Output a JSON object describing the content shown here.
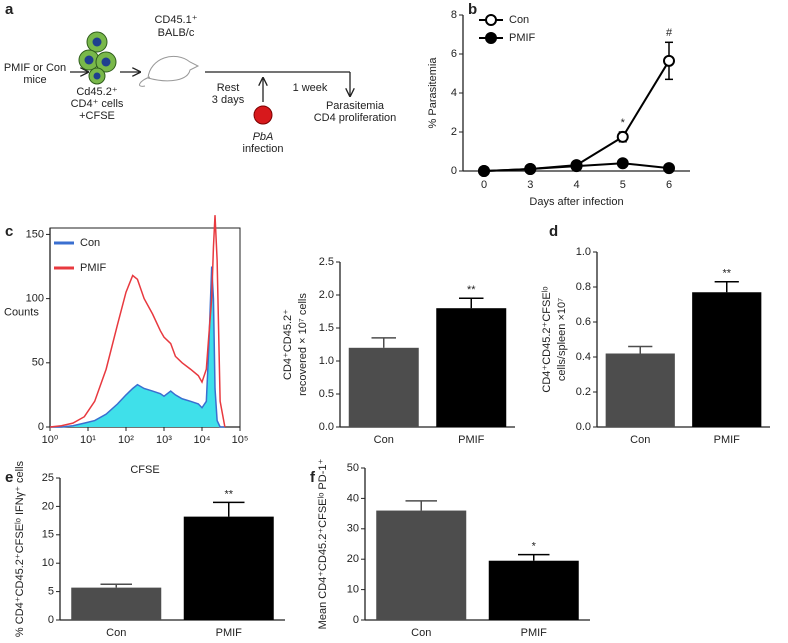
{
  "schematic": {
    "panel": "a",
    "source": [
      "PMIF or Con",
      "mice"
    ],
    "cells": [
      "Cd45.2⁺",
      "CD4⁺ cells",
      "+CFSE"
    ],
    "recipient": [
      "CD45.1⁺",
      "BALB/c"
    ],
    "rest": [
      "Rest",
      "3 days"
    ],
    "infection": [
      "PbA",
      "infection"
    ],
    "interval": "1 week",
    "readout": [
      "Parasitemia",
      "CD4 proliferation"
    ]
  },
  "chart_data": [
    {
      "type": "line",
      "panel": "b",
      "xlabel": "Days after infection",
      "ylabel": [
        "% Parasitemia"
      ],
      "categories": [
        "0",
        "3",
        "4",
        "5",
        "6"
      ],
      "series": [
        {
          "name": "Con",
          "color": "#000000",
          "fill": "#ffffff",
          "values": [
            0,
            0.1,
            0.3,
            1.75,
            5.65
          ],
          "errors": [
            0.05,
            0.05,
            0.05,
            0.25,
            0.95
          ]
        },
        {
          "name": "PMIF",
          "color": "#000000",
          "fill": "#000000",
          "values": [
            0,
            0.1,
            0.25,
            0.4,
            0.15
          ],
          "errors": [
            0.02,
            0.03,
            0.05,
            0.05,
            0.03
          ]
        }
      ],
      "ylim": [
        0,
        8
      ],
      "yticks": [
        0,
        2,
        4,
        6,
        8
      ],
      "annotations": [
        {
          "text": "*",
          "x": "5"
        },
        {
          "text": "#",
          "x": "6"
        }
      ]
    },
    {
      "type": "histogram-curve",
      "panel": "c",
      "xlabel": "CFSE",
      "ylabel": [
        "Counts"
      ],
      "xscale": "log",
      "x": [
        1,
        2,
        4,
        8,
        15,
        30,
        60,
        100,
        150,
        200,
        300,
        500,
        800,
        1000,
        1500,
        2000,
        3000,
        5000,
        8000,
        10000,
        13000,
        15000,
        18000,
        20000,
        22000,
        25000,
        30000,
        40000
      ],
      "series": [
        {
          "name": "Con",
          "color": "#3a6fd0",
          "fill": "#3fe0ea",
          "values": [
            0,
            0,
            1,
            3,
            5,
            10,
            18,
            25,
            30,
            33,
            30,
            28,
            26,
            24,
            28,
            25,
            22,
            20,
            18,
            15,
            20,
            60,
            125,
            100,
            30,
            5,
            0,
            0
          ]
        },
        {
          "name": "PMIF",
          "color": "#e8393f",
          "values": [
            0,
            1,
            3,
            8,
            20,
            45,
            80,
            105,
            118,
            115,
            100,
            88,
            75,
            70,
            65,
            55,
            50,
            45,
            40,
            35,
            45,
            70,
            100,
            140,
            165,
            130,
            20,
            0
          ]
        }
      ],
      "xlim": [
        1,
        100000
      ],
      "xticks": [
        {
          "value": 1,
          "label": "10⁰"
        },
        {
          "value": 10,
          "label": "10¹"
        },
        {
          "value": 100,
          "label": "10²"
        },
        {
          "value": 1000,
          "label": "10³"
        },
        {
          "value": 10000,
          "label": "10⁴"
        },
        {
          "value": 100000,
          "label": "10⁵"
        }
      ],
      "ylim": [
        0,
        155
      ],
      "yticks": [
        0,
        50,
        100,
        150
      ]
    },
    {
      "type": "bar",
      "ylabel": [
        "CD4⁺CD45.2⁺",
        "recovered × 10⁷ cells"
      ],
      "categories": [
        "Con",
        "PMIF"
      ],
      "values": [
        1.2,
        1.8
      ],
      "errors": [
        0.15,
        0.15
      ],
      "colors": [
        "#4d4d4d",
        "#000000"
      ],
      "ylim": [
        0,
        2.5
      ],
      "yticks": [
        {
          "value": 0,
          "label": "0.0"
        },
        0.5,
        {
          "value": 1,
          "label": "1.0"
        },
        1.5,
        {
          "value": 2,
          "label": "2.0"
        },
        2.5
      ],
      "annotations": [
        {
          "text": "**",
          "x": "PMIF"
        }
      ]
    },
    {
      "type": "bar",
      "panel": "d",
      "ylabel": [
        "CD4⁺CD45.2⁺CFSEˡᵒ",
        "cells/spleen ×10⁷"
      ],
      "categories": [
        "Con",
        "PMIF"
      ],
      "values": [
        0.42,
        0.77
      ],
      "errors": [
        0.04,
        0.06
      ],
      "colors": [
        "#4d4d4d",
        "#000000"
      ],
      "ylim": [
        0,
        1
      ],
      "yticks": [
        {
          "value": 0,
          "label": "0.0"
        },
        0.2,
        0.4,
        0.6,
        0.8,
        {
          "value": 1,
          "label": "1.0"
        }
      ],
      "annotations": [
        {
          "text": "**",
          "x": "PMIF"
        }
      ]
    },
    {
      "type": "bar",
      "panel": "e",
      "ylabel": [
        "% CD4⁺CD45.2⁺CFSEˡᵒ IFNγ⁺ cells"
      ],
      "categories": [
        "Con",
        "PMIF"
      ],
      "values": [
        5.7,
        18.2
      ],
      "errors": [
        0.6,
        2.5
      ],
      "colors": [
        "#4d4d4d",
        "#000000"
      ],
      "ylim": [
        0,
        25
      ],
      "yticks": [
        0,
        5,
        10,
        15,
        20,
        25
      ],
      "annotations": [
        {
          "text": "**",
          "x": "PMIF"
        }
      ]
    },
    {
      "type": "bar",
      "panel": "f",
      "ylabel": [
        "Mean CD4⁺CD45.2⁺CFSEˡᵒ PD-1⁺"
      ],
      "categories": [
        "Con",
        "PMIF"
      ],
      "values": [
        36,
        19.5
      ],
      "errors": [
        3.2,
        2
      ],
      "colors": [
        "#4d4d4d",
        "#000000"
      ],
      "ylim": [
        0,
        50
      ],
      "yticks": [
        0,
        10,
        20,
        30,
        40,
        50
      ],
      "annotations": [
        {
          "text": "*",
          "x": "PMIF"
        }
      ]
    }
  ]
}
